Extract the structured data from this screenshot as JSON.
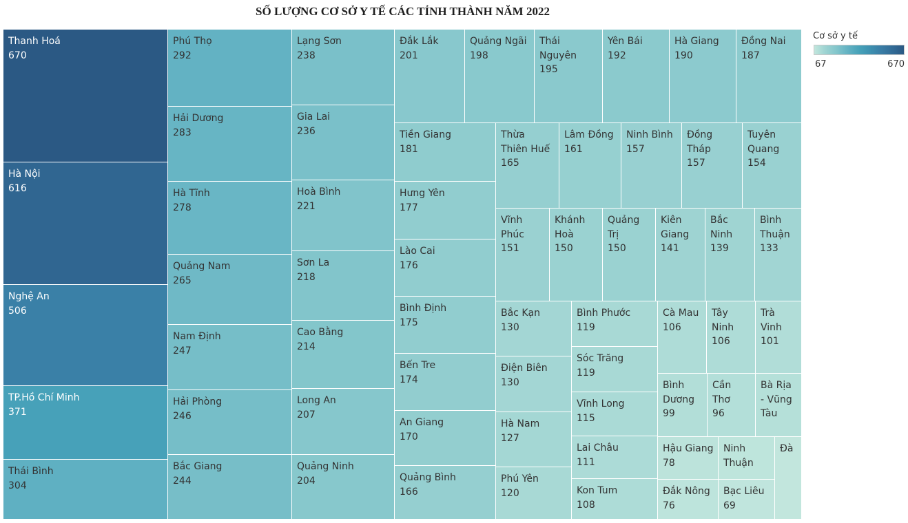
{
  "chart_data": {
    "type": "treemap",
    "title": "SỐ LƯỢNG CƠ SỞ Y TẾ CÁC TỈNH THÀNH NĂM 2022",
    "legend": {
      "title": "Cơ sở y tế",
      "placement": "top-right"
    },
    "color_scale": {
      "min": 67,
      "max": 670,
      "colors": [
        "#c1e6dd",
        "#9dd3d2",
        "#82c5cb",
        "#63b2c3",
        "#47a2b9",
        "#3d90b0",
        "#397ca5",
        "#326b96",
        "#2b5984"
      ]
    },
    "items": [
      {
        "name": "Thanh Hoá",
        "value": 670
      },
      {
        "name": "Hà Nội",
        "value": 616
      },
      {
        "name": "Nghệ An",
        "value": 506
      },
      {
        "name": "TP.Hồ Chí Minh",
        "value": 371
      },
      {
        "name": "Thái Bình",
        "value": 304
      },
      {
        "name": "Phú Thọ",
        "value": 292
      },
      {
        "name": "Hải Dương",
        "value": 283
      },
      {
        "name": "Hà Tĩnh",
        "value": 278
      },
      {
        "name": "Quảng Nam",
        "value": 265
      },
      {
        "name": "Nam Định",
        "value": 247
      },
      {
        "name": "Hải Phòng",
        "value": 246
      },
      {
        "name": "Bắc Giang",
        "value": 244
      },
      {
        "name": "Lạng Sơn",
        "value": 238
      },
      {
        "name": "Gia Lai",
        "value": 236
      },
      {
        "name": "Hoà Bình",
        "value": 221
      },
      {
        "name": "Sơn La",
        "value": 218
      },
      {
        "name": "Cao Bằng",
        "value": 214
      },
      {
        "name": "Long An",
        "value": 207
      },
      {
        "name": "Quảng Ninh",
        "value": 204
      },
      {
        "name": "Đắk Lắk",
        "value": 201
      },
      {
        "name": "Quảng Ngãi",
        "value": 198
      },
      {
        "name": "Thái Nguyên",
        "value": 195
      },
      {
        "name": "Yên Bái",
        "value": 192
      },
      {
        "name": "Hà Giang",
        "value": 190
      },
      {
        "name": "Đồng Nai",
        "value": 187
      },
      {
        "name": "Tiền Giang",
        "value": 181
      },
      {
        "name": "Hưng Yên",
        "value": 177
      },
      {
        "name": "Lào Cai",
        "value": 176
      },
      {
        "name": "Bình Định",
        "value": 175
      },
      {
        "name": "Bến Tre",
        "value": 174
      },
      {
        "name": "An Giang",
        "value": 170
      },
      {
        "name": "Quảng Bình",
        "value": 166
      },
      {
        "name": "Thừa Thiên Huế",
        "value": 165
      },
      {
        "name": "Lâm Đồng",
        "value": 161
      },
      {
        "name": "Ninh Bình",
        "value": 157
      },
      {
        "name": "Đồng Tháp",
        "value": 157
      },
      {
        "name": "Tuyên Quang",
        "value": 154
      },
      {
        "name": "Vĩnh Phúc",
        "value": 151
      },
      {
        "name": "Khánh Hoà",
        "value": 150
      },
      {
        "name": "Quảng Trị",
        "value": 150
      },
      {
        "name": "Kiên Giang",
        "value": 141
      },
      {
        "name": "Bắc Ninh",
        "value": 139
      },
      {
        "name": "Bình Thuận",
        "value": 133
      },
      {
        "name": "Bắc Kạn",
        "value": 130
      },
      {
        "name": "Điện Biên",
        "value": 130
      },
      {
        "name": "Hà Nam",
        "value": 127
      },
      {
        "name": "Phú Yên",
        "value": 120
      },
      {
        "name": "Bình Phước",
        "value": 119
      },
      {
        "name": "Sóc Trăng",
        "value": 119
      },
      {
        "name": "Vĩnh Long",
        "value": 115
      },
      {
        "name": "Lai Châu",
        "value": 111
      },
      {
        "name": "Kon Tum",
        "value": 108
      },
      {
        "name": "Cà Mau",
        "value": 106
      },
      {
        "name": "Tây Ninh",
        "value": 106
      },
      {
        "name": "Trà Vinh",
        "value": 101
      },
      {
        "name": "Bình Dương",
        "value": 99
      },
      {
        "name": "Cần Thơ",
        "value": 96
      },
      {
        "name": "Bà Rịa - Vũng Tàu",
        "value": null,
        "color": "#b5e0d9"
      },
      {
        "name": "Hậu Giang",
        "value": 78
      },
      {
        "name": "Đắk Nông",
        "value": 76
      },
      {
        "name": "Ninh Thuận",
        "value": null,
        "color": "#bee5dc"
      },
      {
        "name": "Bạc Liêu",
        "value": 69
      },
      {
        "name": "Đà",
        "value": null,
        "color": "#c2e6dd"
      }
    ]
  }
}
